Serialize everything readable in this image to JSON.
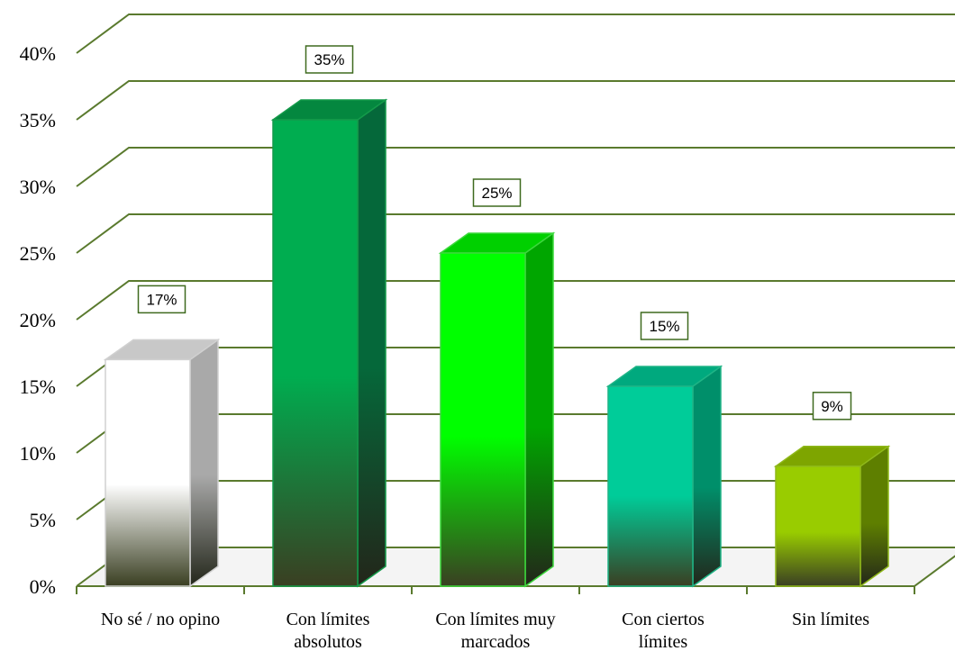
{
  "chart_data": {
    "type": "bar",
    "style": "3d-column",
    "categories": [
      [
        "No sé / no opino"
      ],
      [
        "Con límites",
        "absolutos"
      ],
      [
        "Con límites muy",
        "marcados"
      ],
      [
        "Con ciertos",
        "límites"
      ],
      [
        "Sin límites"
      ]
    ],
    "values": [
      17,
      35,
      25,
      15,
      9
    ],
    "data_labels": [
      "17%",
      "35%",
      "25%",
      "15%",
      "9%"
    ],
    "ylim": [
      0,
      40
    ],
    "yticks": [
      "0%",
      "5%",
      "10%",
      "15%",
      "20%",
      "25%",
      "30%",
      "35%",
      "40%"
    ],
    "grid": true,
    "gridline_color": "#5a7a2e",
    "bar_colors": [
      {
        "front": "#ffffff",
        "side": "#a9a9a9",
        "top": "#c8c8c8",
        "edge": "#d0d0d0"
      },
      {
        "front": "#00ad50",
        "side": "#05683a",
        "top": "#04873f",
        "edge": "#149a4a"
      },
      {
        "front": "#00ff00",
        "side": "#00a600",
        "top": "#00d000",
        "edge": "#3cd83c"
      },
      {
        "front": "#00cc99",
        "side": "#008f6a",
        "top": "#00a97e",
        "edge": "#1fb486"
      },
      {
        "front": "#99cc00",
        "side": "#5e7f00",
        "top": "#7ea500",
        "edge": "#8fb81a"
      }
    ]
  }
}
